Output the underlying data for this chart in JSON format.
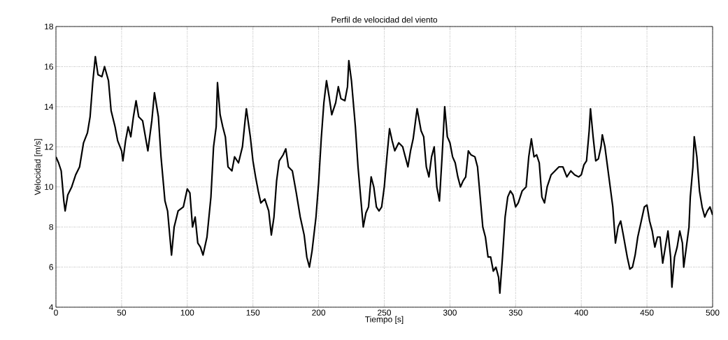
{
  "chart_data": {
    "type": "line",
    "title": "Perfil de velocidad del viento",
    "xlabel": "Tiempo [s]",
    "ylabel": "Velocidad [m/s]",
    "xlim": [
      0,
      500
    ],
    "ylim": [
      4,
      18
    ],
    "xticks": [
      0,
      50,
      100,
      150,
      200,
      250,
      300,
      350,
      400,
      450,
      500
    ],
    "yticks": [
      4,
      6,
      8,
      10,
      12,
      14,
      16,
      18
    ],
    "grid": true,
    "marker": "none",
    "line_style": "solid",
    "series": [
      {
        "color": "#000000",
        "x": [
          0,
          2,
          4,
          6,
          7,
          9,
          12,
          15,
          18,
          21,
          24,
          26,
          28,
          30,
          32,
          35,
          37,
          40,
          42,
          45,
          47,
          50,
          51,
          53,
          55,
          57,
          59,
          61,
          63,
          66,
          70,
          73,
          75,
          78,
          80,
          83,
          85,
          88,
          90,
          93,
          97,
          100,
          102,
          104,
          106,
          108,
          110,
          112,
          115,
          118,
          120,
          122,
          123,
          125,
          127,
          129,
          131,
          134,
          136,
          139,
          142,
          144,
          145,
          148,
          150,
          152,
          154,
          156,
          159,
          162,
          164,
          166,
          168,
          170,
          173,
          175,
          177,
          180,
          183,
          186,
          189,
          191,
          193,
          195,
          198,
          200,
          202,
          204,
          206,
          208,
          210,
          213,
          215,
          217,
          220,
          222,
          223,
          225,
          228,
          230,
          232,
          234,
          236,
          238,
          240,
          242,
          244,
          246,
          248,
          250,
          252,
          254,
          256,
          258,
          261,
          264,
          266,
          268,
          270,
          272,
          275,
          278,
          280,
          282,
          284,
          286,
          288,
          290,
          292,
          294,
          296,
          298,
          300,
          302,
          304,
          306,
          308,
          310,
          312,
          314,
          316,
          319,
          321,
          323,
          325,
          327,
          329,
          331,
          333,
          335,
          337,
          338,
          340,
          342,
          344,
          346,
          348,
          350,
          352,
          355,
          358,
          360,
          362,
          364,
          366,
          368,
          370,
          372,
          374,
          377,
          380,
          383,
          386,
          389,
          392,
          395,
          398,
          400,
          402,
          404,
          406,
          407,
          409,
          411,
          413,
          415,
          416,
          418,
          420,
          422,
          424,
          426,
          428,
          430,
          432,
          435,
          437,
          439,
          441,
          443,
          446,
          448,
          450,
          452,
          454,
          456,
          458,
          460,
          462,
          464,
          466,
          468,
          469,
          471,
          473,
          475,
          477,
          478,
          480,
          482,
          483,
          485,
          486,
          488,
          490,
          492,
          494,
          496,
          498,
          500
        ],
        "values": [
          11.5,
          11.2,
          10.8,
          9.3,
          8.8,
          9.6,
          10.0,
          10.6,
          11.0,
          12.2,
          12.7,
          13.5,
          15.2,
          16.5,
          15.6,
          15.5,
          16.0,
          15.3,
          13.8,
          13.0,
          12.3,
          11.8,
          11.3,
          12.3,
          13.0,
          12.5,
          13.5,
          14.3,
          13.5,
          13.3,
          11.8,
          13.3,
          14.7,
          13.5,
          11.5,
          9.3,
          8.8,
          6.6,
          8.0,
          8.8,
          9.0,
          9.9,
          9.7,
          8.0,
          8.5,
          7.2,
          7.0,
          6.6,
          7.5,
          9.5,
          12.0,
          13.0,
          15.2,
          13.6,
          13.0,
          12.5,
          11.0,
          10.8,
          11.5,
          11.2,
          12.0,
          13.3,
          13.9,
          12.5,
          11.3,
          10.5,
          9.8,
          9.2,
          9.4,
          8.8,
          7.6,
          8.5,
          10.3,
          11.3,
          11.6,
          11.9,
          11.0,
          10.8,
          9.7,
          8.5,
          7.6,
          6.5,
          6.0,
          6.8,
          8.5,
          10.2,
          12.4,
          14.2,
          15.3,
          14.5,
          13.6,
          14.2,
          15.0,
          14.4,
          14.3,
          15.0,
          16.3,
          15.3,
          13.0,
          11.0,
          9.5,
          8.0,
          8.7,
          9.0,
          10.5,
          10.0,
          9.0,
          8.8,
          9.0,
          10.0,
          11.5,
          12.9,
          12.3,
          11.8,
          12.2,
          12.0,
          11.5,
          11.0,
          11.8,
          12.4,
          13.9,
          12.8,
          12.5,
          11.0,
          10.5,
          11.5,
          12.0,
          10.0,
          9.3,
          11.5,
          14.0,
          12.5,
          12.2,
          11.5,
          11.2,
          10.5,
          10.0,
          10.3,
          10.5,
          11.8,
          11.6,
          11.5,
          11.0,
          9.5,
          8.0,
          7.5,
          6.5,
          6.5,
          5.8,
          6.0,
          5.5,
          4.7,
          6.5,
          8.5,
          9.5,
          9.8,
          9.6,
          9.0,
          9.2,
          9.8,
          10.0,
          11.5,
          12.4,
          11.5,
          11.6,
          11.2,
          9.5,
          9.2,
          10.0,
          10.6,
          10.8,
          11.0,
          11.0,
          10.5,
          10.8,
          10.6,
          10.5,
          10.6,
          11.1,
          11.3,
          12.8,
          13.9,
          12.5,
          11.3,
          11.4,
          12.0,
          12.6,
          12.0,
          11.0,
          10.0,
          9.0,
          7.2,
          8.0,
          8.3,
          7.6,
          6.5,
          5.9,
          6.0,
          6.6,
          7.5,
          8.4,
          9.0,
          9.1,
          8.3,
          7.8,
          7.0,
          7.5,
          7.5,
          6.2,
          7.0,
          7.8,
          6.5,
          5.0,
          6.5,
          7.0,
          7.8,
          7.2,
          6.0,
          7.0,
          8.0,
          9.5,
          11.0,
          12.5,
          11.5,
          9.8,
          9.0,
          8.5,
          8.8,
          9.0,
          8.6
        ]
      }
    ]
  }
}
